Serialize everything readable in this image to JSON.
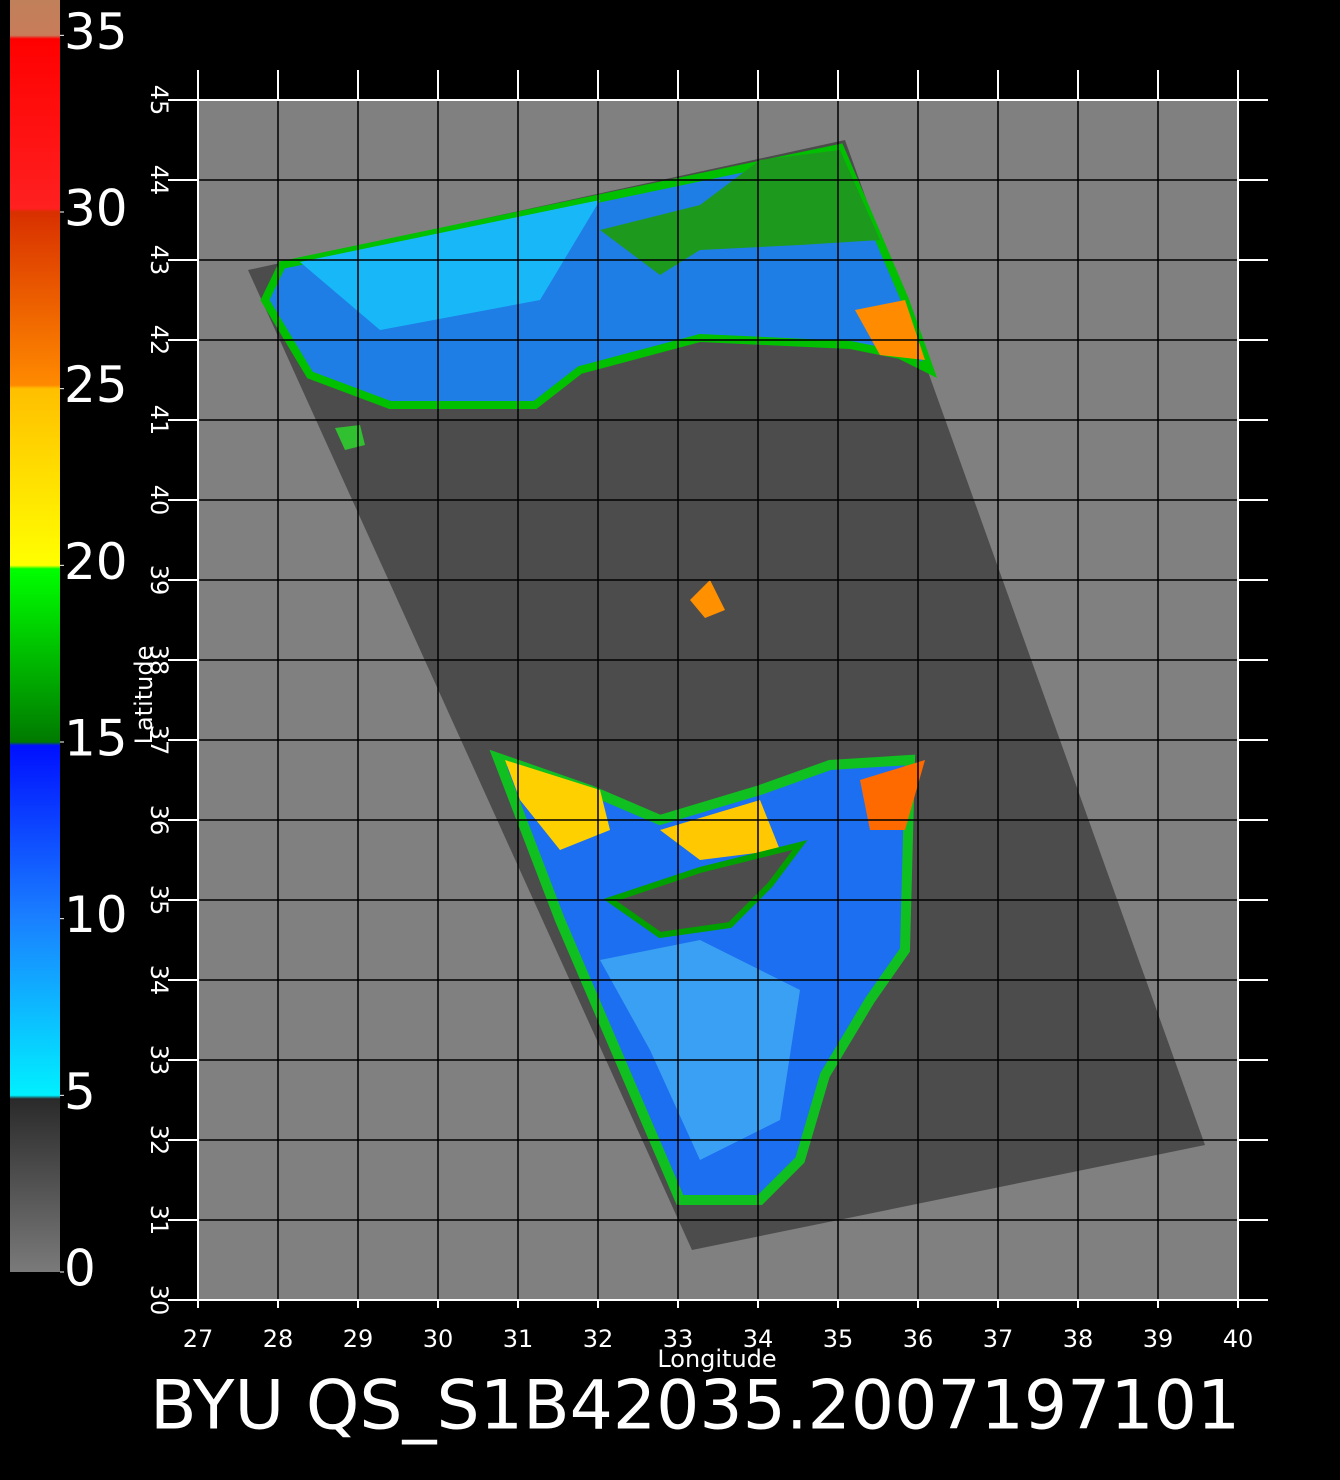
{
  "chart_data": {
    "type": "map",
    "title": "BYU QS_S1B42035.2007197101",
    "x_label": "Longitude",
    "y_label": "Latitude",
    "xlim": [
      27,
      40
    ],
    "ylim": [
      30,
      45
    ],
    "xticks": [
      27,
      28,
      29,
      30,
      31,
      32,
      33,
      34,
      35,
      36,
      37,
      38,
      39,
      40
    ],
    "yticks": [
      30,
      31,
      32,
      33,
      34,
      35,
      36,
      37,
      38,
      39,
      40,
      41,
      42,
      43,
      44,
      45
    ],
    "grid": true,
    "colorbar": {
      "lim": [
        0,
        36
      ],
      "ticks": [
        0,
        5,
        10,
        15,
        20,
        25,
        30,
        35
      ],
      "colormap": [
        {
          "value": 0,
          "color": "#7a7a7a"
        },
        {
          "value": 4.9,
          "color": "#2a2a2a"
        },
        {
          "value": 5,
          "color": "#00f0ff"
        },
        {
          "value": 10,
          "color": "#1a80ff"
        },
        {
          "value": 14.9,
          "color": "#0010ff"
        },
        {
          "value": 15,
          "color": "#007a00"
        },
        {
          "value": 19.9,
          "color": "#00ff00"
        },
        {
          "value": 20,
          "color": "#ffff00"
        },
        {
          "value": 25,
          "color": "#ffbf00"
        },
        {
          "value": 25.1,
          "color": "#ff8a00"
        },
        {
          "value": 30,
          "color": "#d83000"
        },
        {
          "value": 30.1,
          "color": "#ff2020"
        },
        {
          "value": 34.9,
          "color": "#ff0000"
        },
        {
          "value": 35,
          "color": "#c87c5a"
        },
        {
          "value": 36,
          "color": "#c0805a"
        }
      ]
    }
  }
}
